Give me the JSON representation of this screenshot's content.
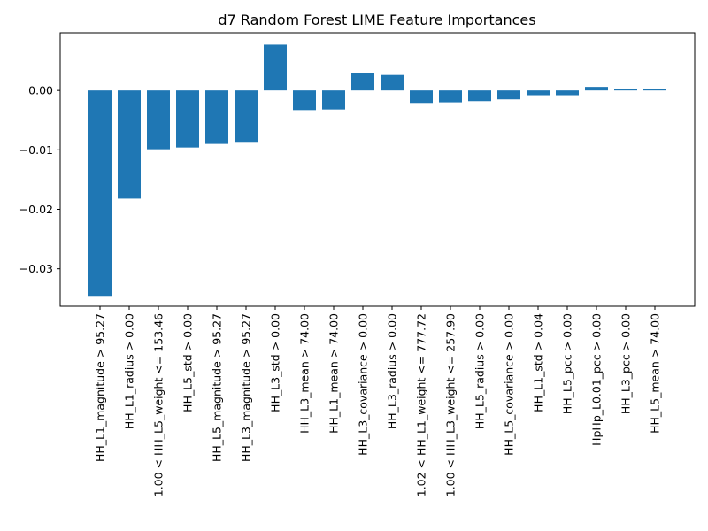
{
  "chart_data": {
    "type": "bar",
    "title": "d7 Random Forest LIME Feature Importances",
    "xlabel": "",
    "ylabel": "",
    "ylim": [
      -0.0363,
      0.0097
    ],
    "yticks": [
      0.0,
      -0.01,
      -0.02,
      -0.03
    ],
    "ytick_labels": [
      "0.00",
      "−0.01",
      "−0.02",
      "−0.03"
    ],
    "grid": false,
    "color": "#1f77b4",
    "categories": [
      "HH_L1_magnitude > 95.27",
      "HH_L1_radius > 0.00",
      "1.00 < HH_L5_weight <= 153.46",
      "HH_L5_std > 0.00",
      "HH_L5_magnitude > 95.27",
      "HH_L3_magnitude > 95.27",
      "HH_L3_std > 0.00",
      "HH_L3_mean > 74.00",
      "HH_L1_mean > 74.00",
      "HH_L3_covariance > 0.00",
      "HH_L3_radius > 0.00",
      "1.02 < HH_L1_weight <= 777.72",
      "1.00 < HH_L3_weight <= 257.90",
      "HH_L5_radius > 0.00",
      "HH_L5_covariance > 0.00",
      "HH_L1_std > 0.04",
      "HH_L5_pcc > 0.00",
      "HpHp_L0.01_pcc > 0.00",
      "HH_L3_pcc > 0.00",
      "HH_L5_mean > 74.00"
    ],
    "values": [
      -0.0347,
      -0.0182,
      -0.0099,
      -0.0096,
      -0.009,
      -0.0088,
      0.0077,
      -0.0033,
      -0.0032,
      0.0029,
      0.0026,
      -0.0021,
      -0.002,
      -0.0018,
      -0.0015,
      -0.0008,
      -0.0008,
      0.0006,
      0.0003,
      0.0002
    ]
  }
}
